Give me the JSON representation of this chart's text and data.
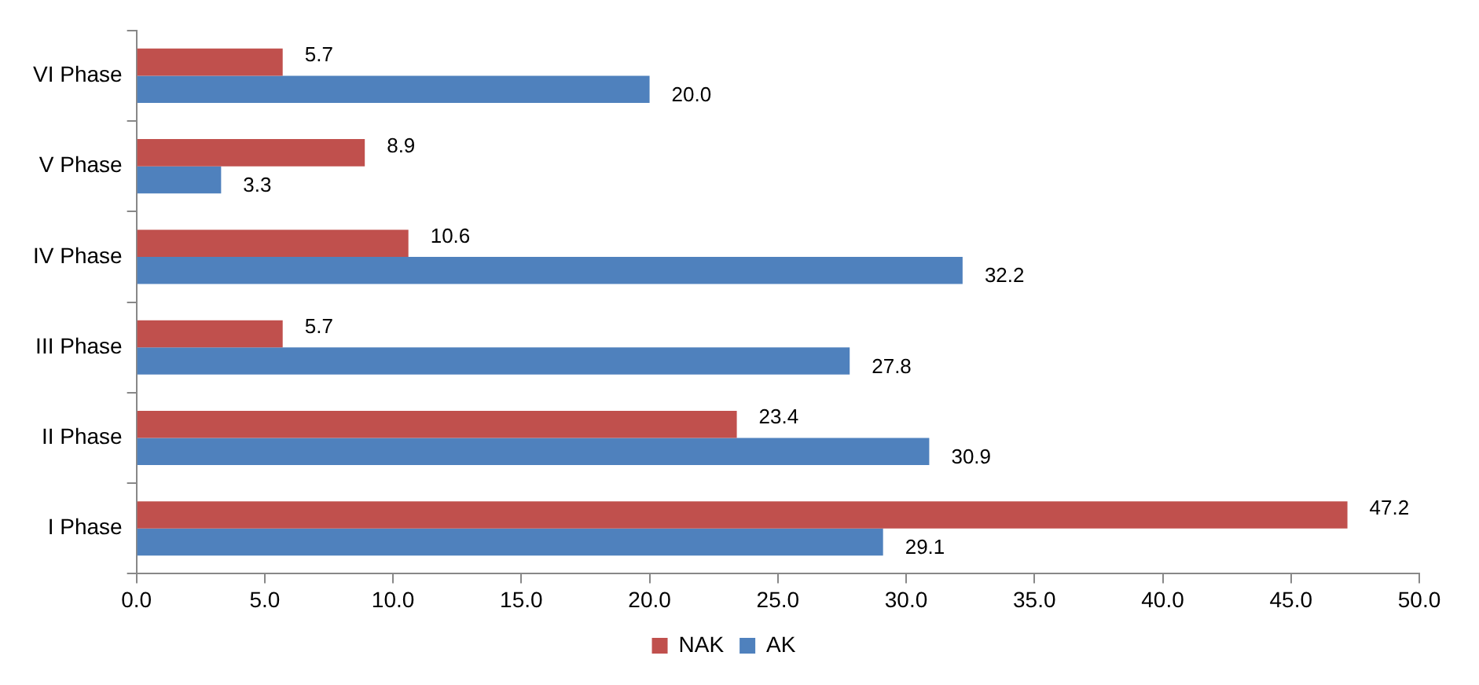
{
  "chart_data": {
    "type": "bar",
    "orientation": "horizontal",
    "categories": [
      "VI Phase",
      "V Phase",
      "IV Phase",
      "III Phase",
      "II Phase",
      "I Phase"
    ],
    "series": [
      {
        "name": "NAK",
        "color": "#c0504d",
        "values": [
          5.7,
          8.9,
          10.6,
          5.7,
          23.4,
          47.2
        ],
        "value_labels": [
          "5.7",
          "8.9",
          "10.6",
          "5.7",
          "23.4",
          "47.2"
        ]
      },
      {
        "name": "AK",
        "color": "#4f81bd",
        "values": [
          20.0,
          3.3,
          32.2,
          27.8,
          30.9,
          29.1
        ],
        "value_labels": [
          "20.0",
          "3.3",
          "32.2",
          "27.8",
          "30.9",
          "29.1"
        ]
      }
    ],
    "xlim": [
      0,
      50
    ],
    "xticks": [
      {
        "value": 0,
        "label": "0.0"
      },
      {
        "value": 5,
        "label": "5.0"
      },
      {
        "value": 10,
        "label": "10.0"
      },
      {
        "value": 15,
        "label": "15.0"
      },
      {
        "value": 20,
        "label": "20.0"
      },
      {
        "value": 25,
        "label": "25.0"
      },
      {
        "value": 30,
        "label": "30.0"
      },
      {
        "value": 35,
        "label": "35.0"
      },
      {
        "value": 40,
        "label": "40.0"
      },
      {
        "value": 45,
        "label": "45.0"
      },
      {
        "value": 50,
        "label": "50.0"
      }
    ],
    "grid": false,
    "legend": "bottom"
  }
}
